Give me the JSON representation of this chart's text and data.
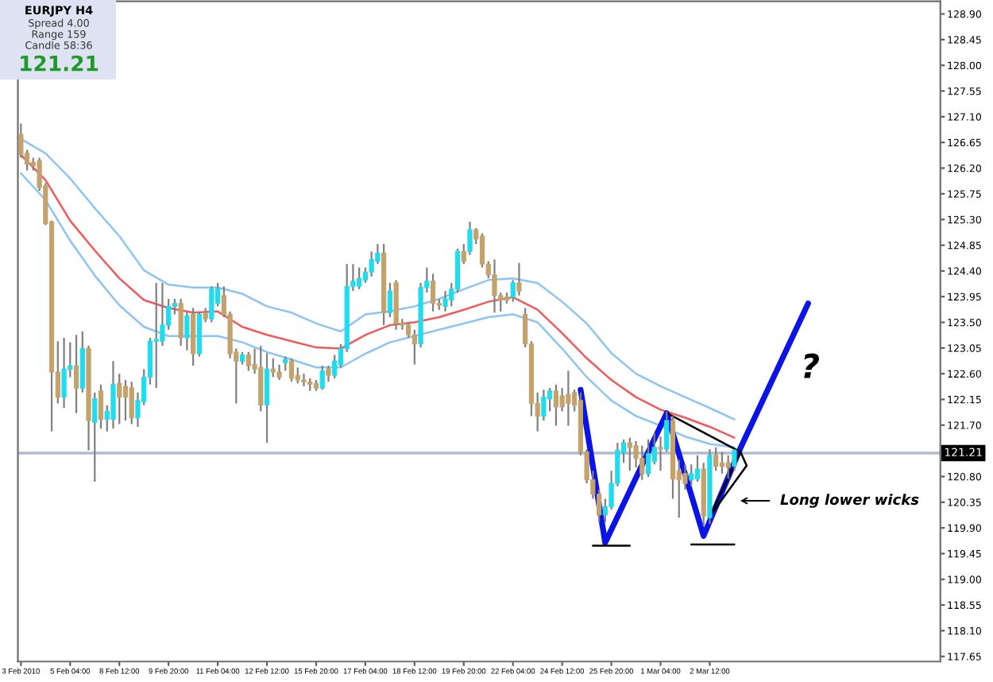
{
  "chart_data": {
    "type": "candlestick",
    "categories": [
      "3 Feb 2010",
      null,
      null,
      null,
      null,
      null,
      null,
      null,
      "5 Feb 04:00",
      null,
      null,
      null,
      null,
      null,
      null,
      null,
      "8 Feb 12:00",
      null,
      null,
      null,
      null,
      null,
      null,
      null,
      "9 Feb 20:00",
      null,
      null,
      null,
      null,
      null,
      null,
      null,
      "11 Feb 04:00",
      null,
      null,
      null,
      null,
      null,
      null,
      null,
      "12 Feb 12:00",
      null,
      null,
      null,
      null,
      null,
      null,
      null,
      "15 Feb 20:00",
      null,
      null,
      null,
      null,
      null,
      null,
      null,
      "17 Feb 04:00",
      null,
      null,
      null,
      null,
      null,
      null,
      null,
      "18 Feb 12:00",
      null,
      null,
      null,
      null,
      null,
      null,
      null,
      "19 Feb 20:00",
      null,
      null,
      null,
      null,
      null,
      null,
      null,
      "22 Feb 04:00",
      null,
      null,
      null,
      null,
      null,
      null,
      null,
      "24 Feb 12:00",
      null,
      null,
      null,
      null,
      null,
      null,
      null,
      "25 Feb 20:00",
      null,
      null,
      null,
      null,
      null,
      null,
      null,
      "1 Mar 04:00",
      null,
      null,
      null,
      null,
      null,
      null,
      null,
      "2 Mar 12:00",
      null,
      null,
      null,
      null,
      null,
      null,
      null,
      null,
      null,
      null,
      null,
      null,
      null,
      null,
      null,
      null,
      null,
      null,
      null,
      null,
      null,
      null,
      null,
      null,
      null,
      null,
      null,
      null,
      null,
      null,
      null,
      null,
      null,
      null,
      null,
      null,
      null
    ],
    "ohlc": [
      [
        126.79,
        126.98,
        126.38,
        126.43
      ],
      [
        126.46,
        126.52,
        126.16,
        126.27
      ],
      [
        126.3,
        126.38,
        126.16,
        126.24
      ],
      [
        126.33,
        126.38,
        125.8,
        125.86
      ],
      [
        125.89,
        125.94,
        125.2,
        125.23
      ],
      [
        125.26,
        125.28,
        121.59,
        122.63
      ],
      [
        122.63,
        123.17,
        122.08,
        122.19
      ],
      [
        122.19,
        123.23,
        122.0,
        122.68
      ],
      [
        122.68,
        123.15,
        122.54,
        122.74
      ],
      [
        122.74,
        123.28,
        121.91,
        122.35
      ],
      [
        122.35,
        123.34,
        122.27,
        123.04
      ],
      [
        123.04,
        123.09,
        121.26,
        121.78
      ],
      [
        121.75,
        122.27,
        120.71,
        122.16
      ],
      [
        122.3,
        122.41,
        121.64,
        121.8
      ],
      [
        121.8,
        122.05,
        121.59,
        121.94
      ],
      [
        121.8,
        122.82,
        121.64,
        122.41
      ],
      [
        122.43,
        122.6,
        121.72,
        122.19
      ],
      [
        122.38,
        122.49,
        121.78,
        122.19
      ],
      [
        122.35,
        122.46,
        121.72,
        121.83
      ],
      [
        121.83,
        122.27,
        121.67,
        122.13
      ],
      [
        122.11,
        122.68,
        122.05,
        122.54
      ],
      [
        122.54,
        123.23,
        122.41,
        123.17
      ],
      [
        123.17,
        124.19,
        122.35,
        123.2
      ],
      [
        123.17,
        124.19,
        123.09,
        123.45
      ],
      [
        123.45,
        123.91,
        123.37,
        123.78
      ],
      [
        123.78,
        123.91,
        123.64,
        123.83
      ],
      [
        123.83,
        123.91,
        123.09,
        123.23
      ],
      [
        123.23,
        123.69,
        123.01,
        123.61
      ],
      [
        123.64,
        123.75,
        122.74,
        122.95
      ],
      [
        122.95,
        123.69,
        122.9,
        123.64
      ],
      [
        123.67,
        123.75,
        123.5,
        123.56
      ],
      [
        123.56,
        124.13,
        123.5,
        124.08
      ],
      [
        123.83,
        124.19,
        123.78,
        124.08
      ],
      [
        123.97,
        124.13,
        123.59,
        123.64
      ],
      [
        123.64,
        123.69,
        122.87,
        122.95
      ],
      [
        122.98,
        123.04,
        122.08,
        122.82
      ],
      [
        122.82,
        122.98,
        122.76,
        122.93
      ],
      [
        122.93,
        122.98,
        122.65,
        122.74
      ],
      [
        122.76,
        123.04,
        122.6,
        122.68
      ],
      [
        122.71,
        123.09,
        121.94,
        122.05
      ],
      [
        122.05,
        122.96,
        121.39,
        122.68
      ],
      [
        122.68,
        122.87,
        122.54,
        122.63
      ],
      [
        122.63,
        122.76,
        122.49,
        122.54
      ],
      [
        122.79,
        122.9,
        122.65,
        122.85
      ],
      [
        122.82,
        122.87,
        122.46,
        122.52
      ],
      [
        122.57,
        122.71,
        122.43,
        122.49
      ],
      [
        122.49,
        122.6,
        122.38,
        122.46
      ],
      [
        122.46,
        122.52,
        122.3,
        122.41
      ],
      [
        122.43,
        122.49,
        122.3,
        122.35
      ],
      [
        122.35,
        122.74,
        122.32,
        122.65
      ],
      [
        122.68,
        122.74,
        122.46,
        122.57
      ],
      [
        122.57,
        122.93,
        122.52,
        122.82
      ],
      [
        122.76,
        123.12,
        122.71,
        123.04
      ],
      [
        123.04,
        124.52,
        122.98,
        124.13
      ],
      [
        124.13,
        124.52,
        124.05,
        124.22
      ],
      [
        124.13,
        124.46,
        124.08,
        124.27
      ],
      [
        124.24,
        124.46,
        124.19,
        124.38
      ],
      [
        124.38,
        124.74,
        124.3,
        124.6
      ],
      [
        124.57,
        124.87,
        124.52,
        124.71
      ],
      [
        124.71,
        124.87,
        123.45,
        123.67
      ],
      [
        123.67,
        124.19,
        123.59,
        124.05
      ],
      [
        124.19,
        124.24,
        123.37,
        123.48
      ],
      [
        123.48,
        123.56,
        123.37,
        123.45
      ],
      [
        123.45,
        123.5,
        123.23,
        123.28
      ],
      [
        123.28,
        123.37,
        122.76,
        123.12
      ],
      [
        123.12,
        124.19,
        123.06,
        124.11
      ],
      [
        124.11,
        124.46,
        124.02,
        124.22
      ],
      [
        124.22,
        124.35,
        123.69,
        123.83
      ],
      [
        123.83,
        123.91,
        123.72,
        123.8
      ],
      [
        123.78,
        124.05,
        123.69,
        123.91
      ],
      [
        123.89,
        124.19,
        123.78,
        124.08
      ],
      [
        124.08,
        124.79,
        124.02,
        124.74
      ],
      [
        124.74,
        124.87,
        124.52,
        124.57
      ],
      [
        124.74,
        125.26,
        124.68,
        125.12
      ],
      [
        125.12,
        125.15,
        124.87,
        124.96
      ],
      [
        125.01,
        125.06,
        124.46,
        124.52
      ],
      [
        124.52,
        124.57,
        124.27,
        124.33
      ],
      [
        124.33,
        124.6,
        123.67,
        123.97
      ],
      [
        123.97,
        124.02,
        123.69,
        123.89
      ],
      [
        123.94,
        124.02,
        123.83,
        123.89
      ],
      [
        123.94,
        124.24,
        123.86,
        124.19
      ],
      [
        124.19,
        124.54,
        123.97,
        124.05
      ],
      [
        123.64,
        123.75,
        123.06,
        123.12
      ],
      [
        123.12,
        123.17,
        121.86,
        122.08
      ],
      [
        122.08,
        122.27,
        121.59,
        121.86
      ],
      [
        121.86,
        122.32,
        121.78,
        122.19
      ],
      [
        122.16,
        122.35,
        121.94,
        122.3
      ],
      [
        122.3,
        122.41,
        121.69,
        122.02
      ],
      [
        122.21,
        122.35,
        121.94,
        122.02
      ],
      [
        122.24,
        122.65,
        121.69,
        122.08
      ],
      [
        122.27,
        122.32,
        121.94,
        122.05
      ],
      [
        122.13,
        122.27,
        121.17,
        121.23
      ],
      [
        121.23,
        121.28,
        120.68,
        120.74
      ],
      [
        120.74,
        120.9,
        120.41,
        120.49
      ],
      [
        120.49,
        120.57,
        120.0,
        120.13
      ],
      [
        120.13,
        120.41,
        120.0,
        120.27
      ],
      [
        120.27,
        120.9,
        120.22,
        120.68
      ],
      [
        120.68,
        121.39,
        120.63,
        121.26
      ],
      [
        121.23,
        121.45,
        121.04,
        121.39
      ],
      [
        121.39,
        121.48,
        120.9,
        121.31
      ],
      [
        121.34,
        121.42,
        120.96,
        121.12
      ],
      [
        121.12,
        121.34,
        120.74,
        120.85
      ],
      [
        120.85,
        121.45,
        120.79,
        121.2
      ],
      [
        121.06,
        121.56,
        121.01,
        121.31
      ],
      [
        121.31,
        121.5,
        120.9,
        121.28
      ],
      [
        121.28,
        121.94,
        121.23,
        121.78
      ],
      [
        121.78,
        121.86,
        120.41,
        120.76
      ],
      [
        120.9,
        121.09,
        120.08,
        120.74
      ],
      [
        120.85,
        121.01,
        120.57,
        120.68
      ],
      [
        120.74,
        121.01,
        120.63,
        120.85
      ],
      [
        120.76,
        121.17,
        120.71,
        120.93
      ],
      [
        120.93,
        121.04,
        119.94,
        120.11
      ],
      [
        120.08,
        121.28,
        119.97,
        121.17
      ],
      [
        121.17,
        121.31,
        120.9,
        120.98
      ],
      [
        121.04,
        121.23,
        120.85,
        120.98
      ],
      [
        121.04,
        121.17,
        120.76,
        120.96
      ],
      [
        120.98,
        121.28,
        120.9,
        121.26
      ],
      null,
      null,
      null,
      null,
      null,
      null,
      null,
      null,
      null,
      null,
      null,
      null,
      null,
      null,
      null,
      null,
      null,
      null,
      null,
      null,
      null,
      null,
      null,
      null,
      null,
      null,
      null,
      null,
      null,
      null,
      null,
      null,
      null
    ],
    "colors": [
      "#c4a26c",
      "#c4a26c",
      "#c4a26c",
      "#c4a26c",
      "#c4a26c",
      "#c4a26c",
      "#c4a26c",
      "#20dcec",
      "#20dcec",
      "#c4a26c",
      "#20dcec",
      "#c4a26c",
      "#20dcec",
      "#c4a26c",
      "#20dcec",
      "#20dcec",
      "#c4a26c",
      "#c4a26c",
      "#c4a26c",
      "#20dcec",
      "#20dcec",
      "#20dcec",
      "#20dcec",
      "#20dcec",
      "#20dcec",
      "#20dcec",
      "#c4a26c",
      "#20dcec",
      "#c4a26c",
      "#20dcec",
      "#c4a26c",
      "#20dcec",
      "#20dcec",
      "#c4a26c",
      "#c4a26c",
      "#c4a26c",
      "#20dcec",
      "#c4a26c",
      "#c4a26c",
      "#c4a26c",
      "#20dcec",
      "#c4a26c",
      "#c4a26c",
      "#20dcec",
      "#c4a26c",
      "#c4a26c",
      "#c4a26c",
      "#c4a26c",
      "#c4a26c",
      "#20dcec",
      "#c4a26c",
      "#20dcec",
      "#20dcec",
      "#20dcec",
      "#20dcec",
      "#20dcec",
      "#20dcec",
      "#20dcec",
      "#20dcec",
      "#c4a26c",
      "#20dcec",
      "#c4a26c",
      "#c4a26c",
      "#c4a26c",
      "#c4a26c",
      "#20dcec",
      "#20dcec",
      "#c4a26c",
      "#c4a26c",
      "#20dcec",
      "#20dcec",
      "#20dcec",
      "#c4a26c",
      "#20dcec",
      "#c4a26c",
      "#c4a26c",
      "#c4a26c",
      "#c4a26c",
      "#c4a26c",
      "#c4a26c",
      "#20dcec",
      "#c4a26c",
      "#c4a26c",
      "#c4a26c",
      "#c4a26c",
      "#20dcec",
      "#20dcec",
      "#c4a26c",
      "#c4a26c",
      "#c4a26c",
      "#c4a26c",
      "#c4a26c",
      "#c4a26c",
      "#c4a26c",
      "#c4a26c",
      "#20dcec",
      "#20dcec",
      "#20dcec",
      "#20dcec",
      "#c4a26c",
      "#c4a26c",
      "#c4a26c",
      "#20dcec",
      "#20dcec",
      "#c4a26c",
      "#20dcec",
      "#c4a26c",
      "#c4a26c",
      "#c4a26c",
      "#20dcec",
      "#20dcec",
      "#c4a26c",
      "#20dcec",
      "#c4a26c",
      "#c4a26c",
      "#c4a26c",
      "#20dcec",
      null,
      null,
      null,
      null,
      null,
      null,
      null,
      null,
      null,
      null,
      null,
      null,
      null,
      null,
      null,
      null,
      null,
      null,
      null,
      null,
      null,
      null,
      null,
      null,
      null,
      null,
      null,
      null,
      null,
      null,
      null,
      null,
      null
    ],
    "series": [
      {
        "type": "line",
        "color": "#f05a5a",
        "values": [
          126.43,
          null,
          null,
          null,
          125.99,
          null,
          null,
          null,
          125.28,
          null,
          null,
          null,
          124.76,
          null,
          null,
          null,
          124.27,
          null,
          null,
          null,
          123.89,
          null,
          null,
          null,
          123.75,
          null,
          null,
          null,
          123.67,
          null,
          null,
          null,
          123.69,
          null,
          null,
          null,
          123.42,
          null,
          null,
          null,
          123.28,
          null,
          null,
          null,
          123.17,
          null,
          null,
          null,
          123.06,
          null,
          null,
          null,
          123.04,
          null,
          null,
          null,
          123.28,
          null,
          null,
          null,
          123.45,
          null,
          null,
          null,
          123.5,
          null,
          null,
          null,
          123.59,
          null,
          null,
          null,
          123.72,
          null,
          null,
          null,
          123.86,
          null,
          null,
          null,
          123.94,
          null,
          null,
          null,
          123.72,
          null,
          null,
          null,
          123.31,
          null,
          null,
          null,
          122.87,
          null,
          null,
          null,
          122.49,
          null,
          null,
          null,
          122.19,
          null,
          null,
          null,
          121.97,
          null,
          null,
          null,
          121.83,
          null,
          null,
          null,
          121.67,
          null,
          null,
          null,
          121.48,
          null,
          null,
          null,
          null,
          null,
          null,
          null,
          null,
          null,
          null,
          null,
          null,
          null,
          null,
          null,
          null,
          null,
          null,
          null,
          null,
          null,
          null,
          null,
          null,
          null,
          null,
          null,
          null,
          null,
          null,
          null,
          null,
          null
        ]
      },
      {
        "type": "line",
        "color": "#8cc4f4",
        "values": [
          126.71,
          null,
          null,
          null,
          126.46,
          null,
          null,
          null,
          126.02,
          null,
          null,
          null,
          125.5,
          null,
          null,
          null,
          125.01,
          null,
          null,
          null,
          124.41,
          null,
          null,
          null,
          124.16,
          null,
          null,
          null,
          124.11,
          null,
          null,
          null,
          124.11,
          null,
          null,
          null,
          124.0,
          null,
          null,
          null,
          123.78,
          null,
          null,
          null,
          123.67,
          null,
          null,
          null,
          123.48,
          null,
          null,
          null,
          123.34,
          null,
          null,
          null,
          123.64,
          null,
          null,
          null,
          123.69,
          null,
          null,
          null,
          123.78,
          null,
          null,
          null,
          123.91,
          null,
          null,
          null,
          124.08,
          null,
          null,
          null,
          124.24,
          null,
          null,
          null,
          124.27,
          null,
          null,
          null,
          124.19,
          null,
          null,
          null,
          123.86,
          null,
          null,
          null,
          123.48,
          null,
          null,
          null,
          122.96,
          null,
          null,
          null,
          122.6,
          null,
          null,
          null,
          122.38,
          null,
          null,
          null,
          122.19,
          null,
          null,
          null,
          122.0,
          null,
          null,
          null,
          121.8,
          null,
          null,
          null,
          null,
          null,
          null,
          null,
          null,
          null,
          null,
          null,
          null,
          null,
          null,
          null,
          null,
          null,
          null,
          null,
          null,
          null,
          null,
          null,
          null,
          null,
          null,
          null,
          null,
          null,
          null,
          null,
          null,
          null
        ]
      },
      {
        "type": "line",
        "color": "#8cc4f4",
        "values": [
          126.11,
          null,
          null,
          null,
          125.64,
          null,
          null,
          null,
          124.93,
          null,
          null,
          null,
          124.32,
          null,
          null,
          null,
          123.8,
          null,
          null,
          null,
          123.42,
          null,
          null,
          null,
          123.26,
          null,
          null,
          null,
          123.26,
          null,
          null,
          null,
          123.26,
          null,
          null,
          null,
          123.15,
          null,
          null,
          null,
          122.98,
          null,
          null,
          null,
          122.85,
          null,
          null,
          null,
          122.71,
          null,
          null,
          null,
          122.71,
          null,
          null,
          null,
          122.95,
          null,
          null,
          null,
          123.15,
          null,
          null,
          null,
          123.26,
          null,
          null,
          null,
          123.37,
          null,
          null,
          null,
          123.48,
          null,
          null,
          null,
          123.59,
          null,
          null,
          null,
          123.64,
          null,
          null,
          null,
          123.5,
          null,
          null,
          null,
          123.04,
          null,
          null,
          null,
          122.54,
          null,
          null,
          null,
          122.13,
          null,
          null,
          null,
          121.86,
          null,
          null,
          null,
          121.69,
          null,
          null,
          null,
          121.5,
          null,
          null,
          null,
          121.37,
          null,
          null,
          null,
          121.31,
          null,
          null,
          null,
          null,
          null,
          null,
          null,
          null,
          null,
          null,
          null,
          null,
          null,
          null,
          null,
          null,
          null,
          null,
          null,
          null,
          null,
          null,
          null,
          null,
          null,
          null,
          null,
          null,
          null,
          null,
          null,
          null,
          null
        ]
      },
      {
        "type": "line",
        "color": "#0a14e6",
        "values": [
          null,
          null,
          null,
          null,
          null,
          null,
          null,
          null,
          null,
          null,
          null,
          null,
          null,
          null,
          null,
          null,
          null,
          null,
          null,
          null,
          null,
          null,
          null,
          null,
          null,
          null,
          null,
          null,
          null,
          null,
          null,
          null,
          null,
          null,
          null,
          null,
          null,
          null,
          null,
          null,
          null,
          null,
          null,
          null,
          null,
          null,
          null,
          null,
          null,
          null,
          null,
          null,
          null,
          null,
          null,
          null,
          null,
          null,
          null,
          null,
          null,
          null,
          null,
          null,
          null,
          null,
          null,
          null,
          null,
          null,
          null,
          null,
          null,
          null,
          null,
          null,
          null,
          null,
          null,
          null,
          null,
          null,
          null,
          null,
          null,
          null,
          null,
          null,
          null,
          null,
          null,
          122.32,
          null,
          null,
          null,
          119.64,
          null,
          null,
          null,
          null,
          null,
          null,
          null,
          null,
          null,
          121.91,
          null,
          null,
          null,
          null,
          null,
          119.76,
          null,
          null,
          null,
          null,
          null,
          121.3,
          null,
          null,
          null,
          null,
          null,
          null,
          null,
          null,
          null,
          null,
          123.83,
          null,
          null,
          null,
          null,
          null,
          null,
          null,
          null,
          null,
          null,
          null,
          null,
          null,
          null,
          null,
          null,
          null,
          null,
          null,
          null,
          null
        ]
      },
      {
        "type": "line",
        "color": "#000000",
        "values": [
          null,
          null,
          null,
          null,
          null,
          null,
          null,
          null,
          null,
          null,
          null,
          null,
          null,
          null,
          null,
          null,
          null,
          null,
          null,
          null,
          null,
          null,
          null,
          null,
          null,
          null,
          null,
          null,
          null,
          null,
          null,
          null,
          null,
          null,
          null,
          null,
          null,
          null,
          null,
          null,
          null,
          null,
          null,
          null,
          null,
          null,
          null,
          null,
          null,
          null,
          null,
          null,
          null,
          null,
          null,
          null,
          null,
          null,
          null,
          null,
          null,
          null,
          null,
          null,
          null,
          null,
          null,
          null,
          null,
          null,
          null,
          null,
          null,
          null,
          null,
          null,
          null,
          null,
          null,
          null,
          null,
          null,
          null,
          null,
          null,
          null,
          null,
          null,
          null,
          null,
          null,
          null,
          null,
          119.59,
          null,
          null,
          null,
          null,
          null,
          119.59,
          null,
          null,
          null,
          null,
          null,
          null,
          null,
          null,
          null,
          null,
          null,
          null,
          null,
          null,
          null,
          null,
          null,
          null,
          null,
          null,
          null,
          null,
          null,
          null,
          null,
          null,
          null,
          null,
          null,
          null,
          null,
          null,
          null,
          null,
          null,
          null,
          null,
          null,
          null,
          null,
          null,
          null,
          null,
          null,
          null,
          null,
          null,
          null,
          null,
          null
        ]
      },
      {
        "type": "line",
        "color": "#000000",
        "values": [
          null,
          null,
          null,
          null,
          null,
          null,
          null,
          null,
          null,
          null,
          null,
          null,
          null,
          null,
          null,
          null,
          null,
          null,
          null,
          null,
          null,
          null,
          null,
          null,
          null,
          null,
          null,
          null,
          null,
          null,
          null,
          null,
          null,
          null,
          null,
          null,
          null,
          null,
          null,
          null,
          null,
          null,
          null,
          null,
          null,
          null,
          null,
          null,
          null,
          null,
          null,
          null,
          null,
          null,
          null,
          null,
          null,
          null,
          null,
          null,
          null,
          null,
          null,
          null,
          null,
          null,
          null,
          null,
          null,
          null,
          null,
          null,
          null,
          null,
          null,
          null,
          null,
          null,
          null,
          null,
          null,
          null,
          null,
          null,
          null,
          null,
          null,
          null,
          null,
          null,
          null,
          null,
          null,
          null,
          null,
          null,
          null,
          null,
          null,
          null,
          null,
          null,
          null,
          null,
          null,
          null,
          null,
          null,
          null,
          119.61,
          null,
          null,
          null,
          null,
          null,
          null,
          119.61,
          null,
          null,
          null,
          null,
          null,
          null,
          null,
          null,
          null,
          null,
          null,
          null,
          null,
          null,
          null,
          null,
          null,
          null,
          null,
          null,
          null,
          null,
          null,
          null,
          null,
          null,
          null,
          null,
          null,
          null,
          null,
          null,
          null
        ]
      },
      {
        "type": "line",
        "color": "#000000",
        "values": [
          null,
          null,
          null,
          null,
          null,
          null,
          null,
          null,
          null,
          null,
          null,
          null,
          null,
          null,
          null,
          null,
          null,
          null,
          null,
          null,
          null,
          null,
          null,
          null,
          null,
          null,
          null,
          null,
          null,
          null,
          null,
          null,
          null,
          null,
          null,
          null,
          null,
          null,
          null,
          null,
          null,
          null,
          null,
          null,
          null,
          null,
          null,
          null,
          null,
          null,
          null,
          null,
          null,
          null,
          null,
          null,
          null,
          null,
          null,
          null,
          null,
          null,
          null,
          null,
          null,
          null,
          null,
          null,
          null,
          null,
          null,
          null,
          null,
          null,
          null,
          null,
          null,
          null,
          null,
          null,
          null,
          null,
          null,
          null,
          null,
          null,
          null,
          null,
          null,
          null,
          null,
          null,
          null,
          null,
          null,
          null,
          null,
          null,
          null,
          null,
          null,
          null,
          null,
          null,
          null,
          121.91,
          null,
          null,
          null,
          null,
          null,
          null,
          null,
          null,
          null,
          null,
          null,
          121.23,
          null,
          null,
          null,
          null,
          null,
          null,
          null,
          null,
          null,
          null,
          null,
          null,
          null,
          null,
          null,
          null,
          null,
          null,
          null,
          null,
          null,
          null,
          null,
          null,
          null,
          null,
          null,
          null,
          null,
          null,
          null,
          null
        ]
      },
      {
        "type": "line",
        "color": "#000000",
        "values": [
          null,
          null,
          null,
          null,
          null,
          null,
          null,
          null,
          null,
          null,
          null,
          null,
          null,
          null,
          null,
          null,
          null,
          null,
          null,
          null,
          null,
          null,
          null,
          null,
          null,
          null,
          null,
          null,
          null,
          null,
          null,
          null,
          null,
          null,
          null,
          null,
          null,
          null,
          null,
          null,
          null,
          null,
          null,
          null,
          null,
          null,
          null,
          null,
          null,
          null,
          null,
          null,
          null,
          null,
          null,
          null,
          null,
          null,
          null,
          null,
          null,
          null,
          null,
          null,
          null,
          null,
          null,
          null,
          null,
          null,
          null,
          null,
          null,
          null,
          null,
          null,
          null,
          null,
          null,
          null,
          null,
          null,
          null,
          null,
          null,
          null,
          null,
          null,
          null,
          null,
          null,
          null,
          null,
          null,
          null,
          null,
          null,
          null,
          null,
          null,
          null,
          null,
          null,
          null,
          null,
          null,
          null,
          null,
          null,
          null,
          null,
          null,
          120.1,
          null,
          null,
          null,
          null,
          121.23,
          120.99,
          null,
          null,
          null,
          null,
          null,
          null,
          null,
          null,
          null,
          null,
          null,
          null,
          null,
          null,
          null,
          null,
          null,
          null,
          null,
          null,
          null,
          null,
          null,
          null,
          null,
          null,
          null,
          null,
          null,
          null,
          null
        ]
      },
      {
        "type": "line",
        "color": "#000000",
        "values": [
          null,
          null,
          null,
          null,
          null,
          null,
          null,
          null,
          null,
          null,
          null,
          null,
          null,
          null,
          null,
          null,
          null,
          null,
          null,
          null,
          null,
          null,
          null,
          null,
          null,
          null,
          null,
          null,
          null,
          null,
          null,
          null,
          null,
          null,
          null,
          null,
          null,
          null,
          null,
          null,
          null,
          null,
          null,
          null,
          null,
          null,
          null,
          null,
          null,
          null,
          null,
          null,
          null,
          null,
          null,
          null,
          null,
          null,
          null,
          null,
          null,
          null,
          null,
          null,
          null,
          null,
          null,
          null,
          null,
          null,
          null,
          null,
          null,
          null,
          null,
          null,
          null,
          null,
          null,
          null,
          null,
          null,
          null,
          null,
          null,
          null,
          null,
          null,
          null,
          null,
          null,
          null,
          null,
          null,
          null,
          null,
          null,
          null,
          null,
          null,
          null,
          null,
          null,
          null,
          null,
          null,
          null,
          null,
          null,
          null,
          null,
          null,
          120.1,
          null,
          null,
          null,
          null,
          null,
          120.99,
          null,
          null,
          null,
          null,
          null,
          null,
          null,
          null,
          null,
          null,
          null,
          null,
          null,
          null,
          null,
          null,
          null,
          null,
          null,
          null,
          null,
          null,
          null,
          null,
          null,
          null,
          null,
          null,
          null,
          null,
          null
        ]
      }
    ],
    "ylim": [
      117.56,
      129.12
    ],
    "yticks": [
      {
        "value": 128.9,
        "label": "128.90"
      },
      128.45,
      {
        "value": 128.0,
        "label": "128.00"
      },
      127.55,
      {
        "value": 127.1,
        "label": "127.10"
      },
      126.65,
      {
        "value": 126.2,
        "label": "126.20"
      },
      125.75,
      {
        "value": 125.3,
        "label": "125.30"
      },
      124.85,
      {
        "value": 124.4,
        "label": "124.40"
      },
      123.95,
      {
        "value": 123.5,
        "label": "123.50"
      },
      123.05,
      {
        "value": 122.6,
        "label": "122.60"
      },
      122.15,
      {
        "value": 121.7,
        "label": "121.70"
      },
      {
        "value": 120.8,
        "label": "120.80"
      },
      120.35,
      {
        "value": 119.9,
        "label": "119.90"
      },
      119.45,
      {
        "value": 119.0,
        "label": "119.00"
      },
      118.55,
      {
        "value": 118.1,
        "label": "118.10"
      },
      117.65
    ],
    "ref_lines": [
      {
        "axis": "y",
        "value": 121.21,
        "label": "121.21",
        "color": "#b4b8d0"
      }
    ],
    "annotations": [
      "EURJPY H4",
      "Spread 4.00",
      "Range 159",
      "Candle 58:36",
      "121.21",
      "?",
      "Long lower wicks"
    ]
  }
}
